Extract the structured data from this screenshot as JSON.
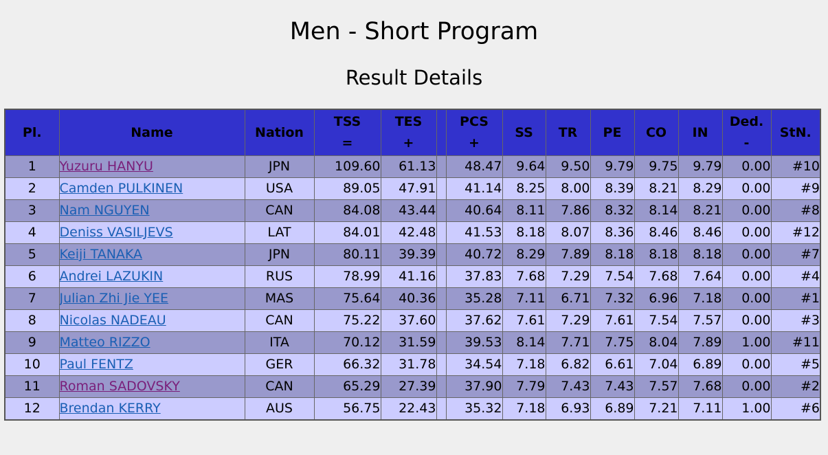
{
  "page": {
    "title": "Men - Short Program",
    "subtitle": "Result Details"
  },
  "table": {
    "headers": {
      "pl": "Pl.",
      "name": "Name",
      "nation": "Nation",
      "tss_top": "TSS",
      "tss_bottom": "=",
      "tes_top": "TES",
      "tes_bottom": "+",
      "pcs_top": "PCS",
      "pcs_bottom": "+",
      "ss": "SS",
      "tr": "TR",
      "pe": "PE",
      "co": "CO",
      "in": "IN",
      "ded_top": "Ded.",
      "ded_bottom": "-",
      "stn": "StN."
    },
    "rows": [
      {
        "pl": "1",
        "name": "Yuzuru HANYU",
        "nation": "JPN",
        "tss": "109.60",
        "tes": "61.13",
        "pcs": "48.47",
        "ss": "9.64",
        "tr": "9.50",
        "pe": "9.79",
        "co": "9.75",
        "in": "9.79",
        "ded": "0.00",
        "stn": "#10"
      },
      {
        "pl": "2",
        "name": "Camden PULKINEN",
        "nation": "USA",
        "tss": "89.05",
        "tes": "47.91",
        "pcs": "41.14",
        "ss": "8.25",
        "tr": "8.00",
        "pe": "8.39",
        "co": "8.21",
        "in": "8.29",
        "ded": "0.00",
        "stn": "#9"
      },
      {
        "pl": "3",
        "name": "Nam NGUYEN",
        "nation": "CAN",
        "tss": "84.08",
        "tes": "43.44",
        "pcs": "40.64",
        "ss": "8.11",
        "tr": "7.86",
        "pe": "8.32",
        "co": "8.14",
        "in": "8.21",
        "ded": "0.00",
        "stn": "#8"
      },
      {
        "pl": "4",
        "name": "Deniss VASILJEVS",
        "nation": "LAT",
        "tss": "84.01",
        "tes": "42.48",
        "pcs": "41.53",
        "ss": "8.18",
        "tr": "8.07",
        "pe": "8.36",
        "co": "8.46",
        "in": "8.46",
        "ded": "0.00",
        "stn": "#12"
      },
      {
        "pl": "5",
        "name": "Keiji TANAKA",
        "nation": "JPN",
        "tss": "80.11",
        "tes": "39.39",
        "pcs": "40.72",
        "ss": "8.29",
        "tr": "7.89",
        "pe": "8.18",
        "co": "8.18",
        "in": "8.18",
        "ded": "0.00",
        "stn": "#7"
      },
      {
        "pl": "6",
        "name": "Andrei LAZUKIN",
        "nation": "RUS",
        "tss": "78.99",
        "tes": "41.16",
        "pcs": "37.83",
        "ss": "7.68",
        "tr": "7.29",
        "pe": "7.54",
        "co": "7.68",
        "in": "7.64",
        "ded": "0.00",
        "stn": "#4"
      },
      {
        "pl": "7",
        "name": "Julian Zhi Jie YEE",
        "nation": "MAS",
        "tss": "75.64",
        "tes": "40.36",
        "pcs": "35.28",
        "ss": "7.11",
        "tr": "6.71",
        "pe": "7.32",
        "co": "6.96",
        "in": "7.18",
        "ded": "0.00",
        "stn": "#1"
      },
      {
        "pl": "8",
        "name": "Nicolas NADEAU",
        "nation": "CAN",
        "tss": "75.22",
        "tes": "37.60",
        "pcs": "37.62",
        "ss": "7.61",
        "tr": "7.29",
        "pe": "7.61",
        "co": "7.54",
        "in": "7.57",
        "ded": "0.00",
        "stn": "#3"
      },
      {
        "pl": "9",
        "name": "Matteo RIZZO",
        "nation": "ITA",
        "tss": "70.12",
        "tes": "31.59",
        "pcs": "39.53",
        "ss": "8.14",
        "tr": "7.71",
        "pe": "7.75",
        "co": "8.04",
        "in": "7.89",
        "ded": "1.00",
        "stn": "#11"
      },
      {
        "pl": "10",
        "name": "Paul FENTZ",
        "nation": "GER",
        "tss": "66.32",
        "tes": "31.78",
        "pcs": "34.54",
        "ss": "7.18",
        "tr": "6.82",
        "pe": "6.61",
        "co": "7.04",
        "in": "6.89",
        "ded": "0.00",
        "stn": "#5"
      },
      {
        "pl": "11",
        "name": "Roman SADOVSKY",
        "nation": "CAN",
        "tss": "65.29",
        "tes": "27.39",
        "pcs": "37.90",
        "ss": "7.79",
        "tr": "7.43",
        "pe": "7.43",
        "co": "7.57",
        "in": "7.68",
        "ded": "0.00",
        "stn": "#2"
      },
      {
        "pl": "12",
        "name": "Brendan KERRY",
        "nation": "AUS",
        "tss": "56.75",
        "tes": "22.43",
        "pcs": "35.32",
        "ss": "7.18",
        "tr": "6.93",
        "pe": "6.89",
        "co": "7.21",
        "in": "7.11",
        "ded": "1.00",
        "stn": "#6"
      }
    ]
  },
  "colors": {
    "header_bg": "#3232cc",
    "row_odd": "#9999cc",
    "row_even": "#ccccff",
    "link": "#1a5fb4",
    "link_visited": "#7a1f7a"
  }
}
